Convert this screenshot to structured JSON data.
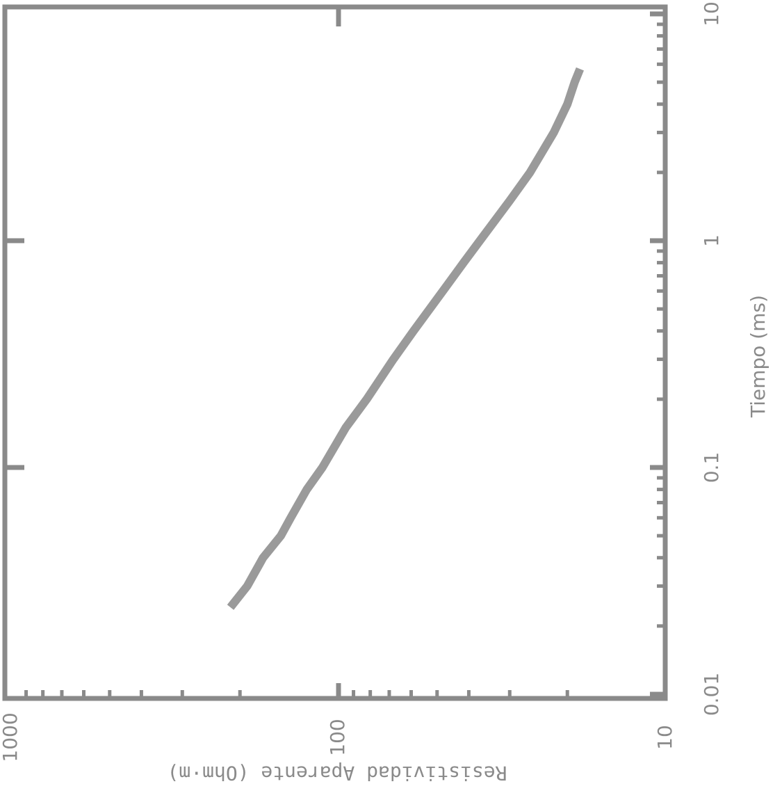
{
  "chart_data": {
    "type": "line",
    "orientation": "rotated 90° clockwise (x axis vertical on right, y axis horizontal at bottom, reversed)",
    "xlabel": "Tiempo (ms)",
    "ylabel": "Resistividad Aparente (Ohm·m)",
    "x_scale": "log",
    "y_scale": "log",
    "xlim": [
      0.005,
      10
    ],
    "ylim": [
      10,
      1000
    ],
    "x_ticks": [
      "0.01",
      "0.1",
      "1",
      "10"
    ],
    "y_ticks": [
      "1000",
      "100",
      "10"
    ],
    "grid": false,
    "series": [
      {
        "color": "#9a9a9a",
        "x": [
          0.025,
          0.03,
          0.04,
          0.05,
          0.06,
          0.08,
          0.1,
          0.15,
          0.2,
          0.3,
          0.4,
          0.6,
          0.8,
          1.0,
          1.5,
          2.0,
          3.0,
          4.0,
          5.0,
          5.5
        ],
        "y": [
          210,
          190,
          170,
          150,
          140,
          125,
          112,
          95,
          82,
          68,
          59,
          48,
          41.5,
          37,
          30,
          26,
          22,
          20,
          19,
          18.5
        ]
      }
    ]
  }
}
